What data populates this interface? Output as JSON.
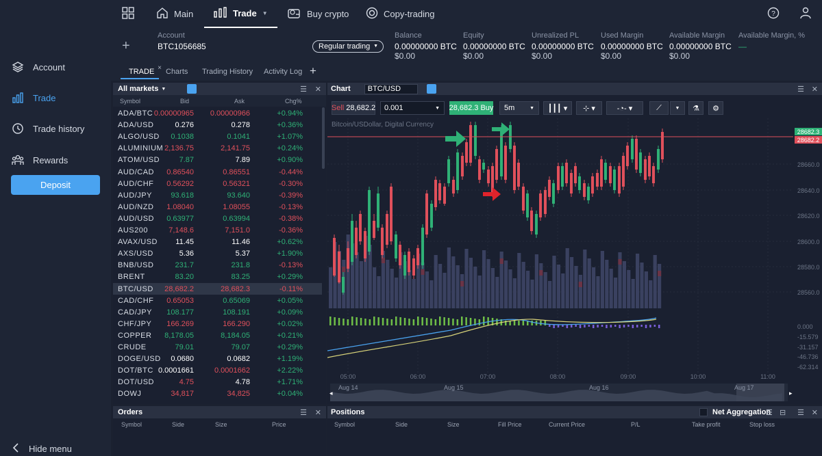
{
  "sidebar": {
    "items": [
      {
        "label": "Account",
        "icon": "layers-icon"
      },
      {
        "label": "Trade",
        "icon": "bar-chart-icon",
        "active": true
      },
      {
        "label": "Trade history",
        "icon": "clock-icon"
      },
      {
        "label": "Rewards",
        "icon": "people-icon"
      }
    ],
    "deposit": "Deposit",
    "hide_menu": "Hide menu"
  },
  "nav": {
    "main": "Main",
    "trade": "Trade",
    "buy_crypto": "Buy crypto",
    "copy_trading": "Copy-trading"
  },
  "account": {
    "label": "Account",
    "id": "BTC1056685",
    "mode": "Regular trading",
    "metrics": [
      {
        "label": "Balance",
        "value": "0.00000000 BTC",
        "usd": "$0.00"
      },
      {
        "label": "Equity",
        "value": "0.00000000 BTC",
        "usd": "$0.00"
      },
      {
        "label": "Unrealized PL",
        "value": "0.00000000 BTC",
        "usd": "$0.00"
      },
      {
        "label": "Used Margin",
        "value": "0.00000000 BTC",
        "usd": "$0.00"
      },
      {
        "label": "Available Margin",
        "value": "0.00000000 BTC",
        "usd": "$0.00"
      },
      {
        "label": "Available Margin, %",
        "value": "—",
        "usd": ""
      }
    ]
  },
  "tabs": [
    "TRADE",
    "Charts",
    "Trading History",
    "Activity Log"
  ],
  "markets": {
    "title": "All markets",
    "columns": [
      "Symbol",
      "Bid",
      "Ask",
      "Chg%"
    ],
    "rows": [
      [
        "ADA/BTC",
        "0.00000965",
        "0.00000966",
        "+0.94%",
        "red",
        "red",
        "green"
      ],
      [
        "ADA/USD",
        "0.276",
        "0.278",
        "+0.36%",
        "white",
        "white",
        "green"
      ],
      [
        "ALGO/USD",
        "0.1038",
        "0.1041",
        "+1.07%",
        "green",
        "green",
        "green"
      ],
      [
        "ALUMINIUM",
        "2,136.75",
        "2,141.75",
        "+0.24%",
        "red",
        "red",
        "green"
      ],
      [
        "ATOM/USD",
        "7.87",
        "7.89",
        "+0.90%",
        "green",
        "white",
        "green"
      ],
      [
        "AUD/CAD",
        "0.86540",
        "0.86551",
        "-0.44%",
        "red",
        "red",
        "red"
      ],
      [
        "AUD/CHF",
        "0.56292",
        "0.56321",
        "-0.30%",
        "red",
        "red",
        "red"
      ],
      [
        "AUD/JPY",
        "93.618",
        "93.640",
        "-0.39%",
        "green",
        "green",
        "red"
      ],
      [
        "AUD/NZD",
        "1.08040",
        "1.08055",
        "-0.13%",
        "red",
        "red",
        "red"
      ],
      [
        "AUD/USD",
        "0.63977",
        "0.63994",
        "-0.38%",
        "green",
        "green",
        "red"
      ],
      [
        "AUS200",
        "7,148.6",
        "7,151.0",
        "-0.36%",
        "red",
        "red",
        "red"
      ],
      [
        "AVAX/USD",
        "11.45",
        "11.46",
        "+0.62%",
        "white",
        "white",
        "green"
      ],
      [
        "AXS/USD",
        "5.36",
        "5.37",
        "+1.90%",
        "white",
        "white",
        "green"
      ],
      [
        "BNB/USD",
        "231.7",
        "231.8",
        "-0.13%",
        "green",
        "green",
        "red"
      ],
      [
        "BRENT",
        "83.20",
        "83.25",
        "+0.29%",
        "green",
        "green",
        "green"
      ],
      [
        "BTC/USD",
        "28,682.2",
        "28,682.3",
        "-0.11%",
        "red",
        "red",
        "red"
      ],
      [
        "CAD/CHF",
        "0.65053",
        "0.65069",
        "+0.05%",
        "red",
        "green",
        "green"
      ],
      [
        "CAD/JPY",
        "108.177",
        "108.191",
        "+0.09%",
        "green",
        "green",
        "green"
      ],
      [
        "CHF/JPY",
        "166.269",
        "166.290",
        "+0.02%",
        "red",
        "red",
        "green"
      ],
      [
        "COPPER",
        "8,178.05",
        "8,184.05",
        "+0.21%",
        "green",
        "green",
        "green"
      ],
      [
        "CRUDE",
        "79.01",
        "79.07",
        "+0.29%",
        "green",
        "green",
        "green"
      ],
      [
        "DOGE/USD",
        "0.0680",
        "0.0682",
        "+1.19%",
        "white",
        "white",
        "green"
      ],
      [
        "DOT/BTC",
        "0.0001661",
        "0.0001662",
        "+2.22%",
        "white",
        "red",
        "green"
      ],
      [
        "DOT/USD",
        "4.75",
        "4.78",
        "+1.71%",
        "red",
        "white",
        "green"
      ],
      [
        "DOWJ",
        "34,817",
        "34,825",
        "+0.04%",
        "red",
        "red",
        "green"
      ]
    ]
  },
  "chart": {
    "title": "Chart",
    "symbol": "BTC/USD",
    "sell_label": "Sell",
    "sell_price": "28,682.2",
    "qty": "0.001",
    "buy_price": "28,682.3",
    "buy_label": "Buy",
    "timeframe": "5m",
    "subtitle": "Bitcoin/USDollar, Digital Currency",
    "price_ticks": [
      "28660.0",
      "28640.0",
      "28620.0",
      "28600.0",
      "28580.0",
      "28560.0"
    ],
    "price_tag_green": "28682.3",
    "price_tag_red": "28682.2",
    "indicator_ticks": [
      "0.000",
      "-15.579",
      "-31.157",
      "-46.736",
      "-62.314"
    ],
    "time_ticks": [
      "05:00",
      "06:00",
      "07:00",
      "08:00",
      "09:00",
      "10:00",
      "11:00"
    ],
    "nav_labels": [
      "Aug 14",
      "Aug 15",
      "Aug 16",
      "Aug 17"
    ]
  },
  "orders": {
    "title": "Orders",
    "columns": [
      "Symbol",
      "Side",
      "Size",
      "Price"
    ]
  },
  "positions": {
    "title": "Positions",
    "net_aggregation": "Net Aggregation",
    "columns": [
      "Symbol",
      "Side",
      "Size",
      "Fill Price",
      "Current Price",
      "P/L",
      "Take profit",
      "Stop loss"
    ]
  },
  "colors": {
    "green": "#2fb176",
    "red": "#e0505b",
    "accent": "#4aa3f0"
  }
}
